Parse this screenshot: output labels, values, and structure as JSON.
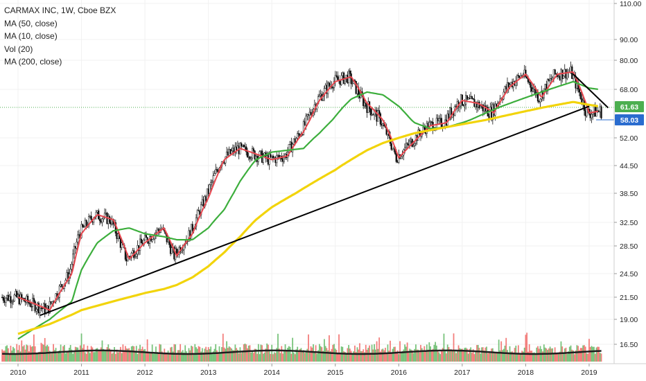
{
  "header": {
    "title": "CARMAX INC, 1W, Cboe BZX",
    "indicators": [
      "MA (50, close)",
      "MA (10, close)",
      "Vol (20)",
      "MA (200, close)"
    ]
  },
  "price_labels": {
    "last": "61.63",
    "secondary": "58.03"
  },
  "colors": {
    "up": "#26a69a",
    "down": "#ef5350",
    "vol_up": "#4caf50",
    "vol_down": "#ef5350",
    "ma10": "#e8474f",
    "ma50": "#3cae3c",
    "ma200": "#f2d40b",
    "volma": "#1f1f1f",
    "trendline": "#000000",
    "last_box": "#4caf50",
    "secondary_box": "#2a6ccf"
  },
  "chart_data": {
    "type": "line",
    "title": "CARMAX INC, 1W, Cboe BZX",
    "x_tick_labels": [
      "2010",
      "2011",
      "2012",
      "2013",
      "2014",
      "2015",
      "2016",
      "2017",
      "2018",
      "2019"
    ],
    "y_tick_labels": [
      "110.00",
      "90.00",
      "80.00",
      "68.00",
      "61.63",
      "58.03",
      "52.00",
      "44.50",
      "38.50",
      "32.50",
      "28.50",
      "24.50",
      "21.50",
      "19.00",
      "16.50"
    ],
    "y_scale": "log",
    "ylim": [
      15.2,
      112
    ],
    "x": [
      2010.0,
      2010.5,
      2010.85,
      2011.0,
      2011.25,
      2011.5,
      2011.75,
      2012.0,
      2012.3,
      2012.5,
      2012.75,
      2013.0,
      2013.25,
      2013.5,
      2013.75,
      2014.0,
      2014.25,
      2014.5,
      2014.75,
      2015.0,
      2015.25,
      2015.5,
      2015.75,
      2016.0,
      2016.25,
      2016.5,
      2016.75,
      2017.0,
      2017.25,
      2017.5,
      2017.75,
      2018.0,
      2018.25,
      2018.5,
      2018.75,
      2019.0,
      2019.15
    ],
    "series": [
      {
        "name": "MA (10, close)",
        "values": [
          21.5,
          20.0,
          24.5,
          30.5,
          34.0,
          33.0,
          26.5,
          29.0,
          31.5,
          27.0,
          30.5,
          37.5,
          46.0,
          49.0,
          47.5,
          46.0,
          47.0,
          54.0,
          64.0,
          71.0,
          73.0,
          63.0,
          58.0,
          46.5,
          51.0,
          56.0,
          57.0,
          64.0,
          63.0,
          60.0,
          69.0,
          74.0,
          65.0,
          74.0,
          75.0,
          60.0,
          60.5
        ]
      },
      {
        "name": "MA (50, close)",
        "values": [
          17.0,
          19.0,
          21.0,
          25.0,
          29.0,
          31.0,
          31.5,
          30.5,
          30.0,
          29.5,
          29.5,
          31.5,
          35.0,
          41.0,
          46.0,
          48.0,
          48.5,
          49.0,
          53.5,
          59.0,
          64.5,
          67.0,
          66.0,
          62.0,
          57.0,
          55.0,
          55.5,
          57.0,
          59.0,
          61.0,
          63.0,
          65.0,
          67.0,
          69.0,
          71.0,
          68.5,
          68.0
        ]
      },
      {
        "name": "MA (200, close)",
        "values": [
          17.5,
          18.5,
          19.5,
          20.0,
          20.5,
          21.0,
          21.5,
          22.0,
          22.5,
          23.0,
          24.0,
          25.5,
          27.5,
          30.0,
          33.0,
          35.5,
          37.5,
          39.5,
          41.5,
          43.5,
          46.0,
          48.5,
          50.5,
          52.0,
          53.5,
          54.5,
          55.5,
          56.5,
          57.5,
          58.5,
          59.5,
          60.5,
          61.5,
          62.5,
          63.5,
          62.5,
          62.0
        ]
      },
      {
        "name": "trendline",
        "values": [
          18.8,
          19.7,
          20.3,
          20.6,
          21.1,
          21.5,
          22.0,
          22.4,
          23.3,
          23.7,
          24.3,
          25.3,
          26.5,
          28.0,
          29.5,
          31.0,
          33.0,
          35.0,
          37.0,
          39.0,
          40.5,
          42.0,
          43.3,
          44.0,
          46.0,
          48.0,
          49.5,
          51.5,
          53.0,
          54.5,
          56.0,
          57.0,
          58.5,
          59.5,
          60.5,
          62.0,
          62.5
        ]
      }
    ]
  }
}
